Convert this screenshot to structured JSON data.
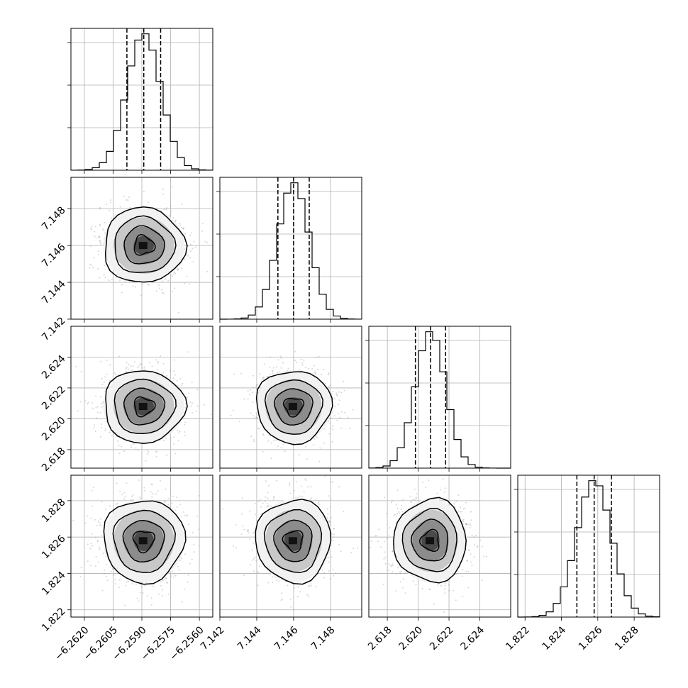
{
  "chart_data": {
    "type": "corner",
    "parameters": [
      {
        "mean": -6.2589,
        "sigma": 0.00088,
        "range": [
          -6.2627,
          -6.2553
        ],
        "ticks": [
          -6.262,
          -6.2605,
          -6.259,
          -6.2575,
          -6.256
        ],
        "tick_labels": [
          "−6.2620",
          "−6.2605",
          "−6.2590",
          "−6.2575",
          "−6.2560"
        ],
        "quantiles": [
          -6.25978,
          -6.2589,
          -6.25802
        ]
      },
      {
        "mean": 7.146,
        "sigma": 0.00085,
        "range": [
          7.142,
          7.1497
        ],
        "ticks": [
          7.142,
          7.144,
          7.146,
          7.148
        ],
        "tick_labels": [
          "7.142",
          "7.144",
          "7.146",
          "7.148"
        ],
        "quantiles": [
          7.14515,
          7.146,
          7.14685
        ]
      },
      {
        "mean": 2.6208,
        "sigma": 0.00098,
        "range": [
          2.6168,
          2.626
        ],
        "ticks": [
          2.618,
          2.62,
          2.622,
          2.624
        ],
        "tick_labels": [
          "2.618",
          "2.620",
          "2.622",
          "2.624"
        ],
        "quantiles": [
          2.61982,
          2.6208,
          2.62178
        ]
      },
      {
        "mean": 1.8258,
        "sigma": 0.00095,
        "range": [
          1.8216,
          1.8294
        ],
        "ticks": [
          1.822,
          1.824,
          1.826,
          1.828
        ],
        "tick_labels": [
          "1.822",
          "1.824",
          "1.826",
          "1.828"
        ],
        "quantiles": [
          1.82485,
          1.8258,
          1.82675
        ]
      }
    ],
    "histogram_bins": 20,
    "contour_levels_sigma": [
      0.5,
      1.0,
      1.5,
      2.0
    ],
    "grid": true
  }
}
